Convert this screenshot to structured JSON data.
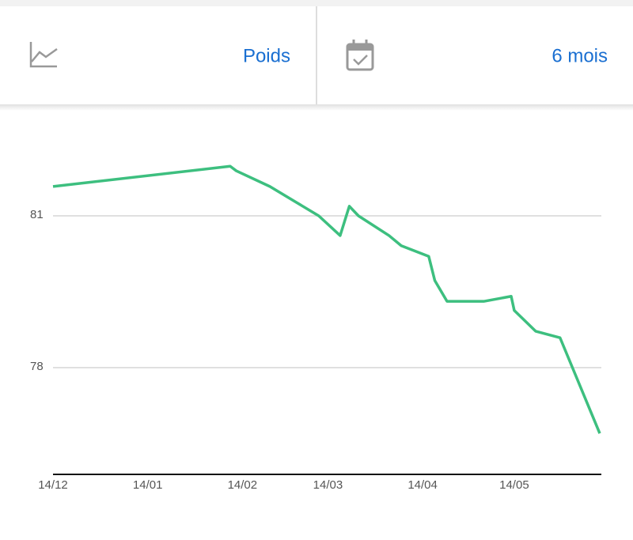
{
  "header": {
    "metric": "Poids",
    "period": "6 mois"
  },
  "chart_data": {
    "type": "line",
    "x": [
      0,
      58,
      60,
      71,
      87,
      94,
      97,
      100,
      110,
      114,
      123,
      125,
      129,
      141,
      150,
      151,
      158,
      166,
      179
    ],
    "series": [
      {
        "color": "#3dbf7f",
        "values": [
          81.58,
          81.98,
          81.89,
          81.58,
          81.0,
          80.61,
          81.19,
          81.0,
          80.61,
          80.41,
          80.2,
          79.72,
          79.31,
          79.31,
          79.41,
          79.13,
          78.72,
          78.59,
          76.7
        ]
      }
    ],
    "xlim": [
      0,
      179
    ],
    "xticks": [
      {
        "value": 0,
        "label": "14/12"
      },
      {
        "value": 31,
        "label": "14/01"
      },
      {
        "value": 62,
        "label": "14/02"
      },
      {
        "value": 90,
        "label": "14/03"
      },
      {
        "value": 121,
        "label": "14/04"
      },
      {
        "value": 151,
        "label": "14/05"
      }
    ],
    "ylim": [
      75.9,
      83.1
    ],
    "yticks": [
      78,
      81
    ],
    "grid": true
  }
}
